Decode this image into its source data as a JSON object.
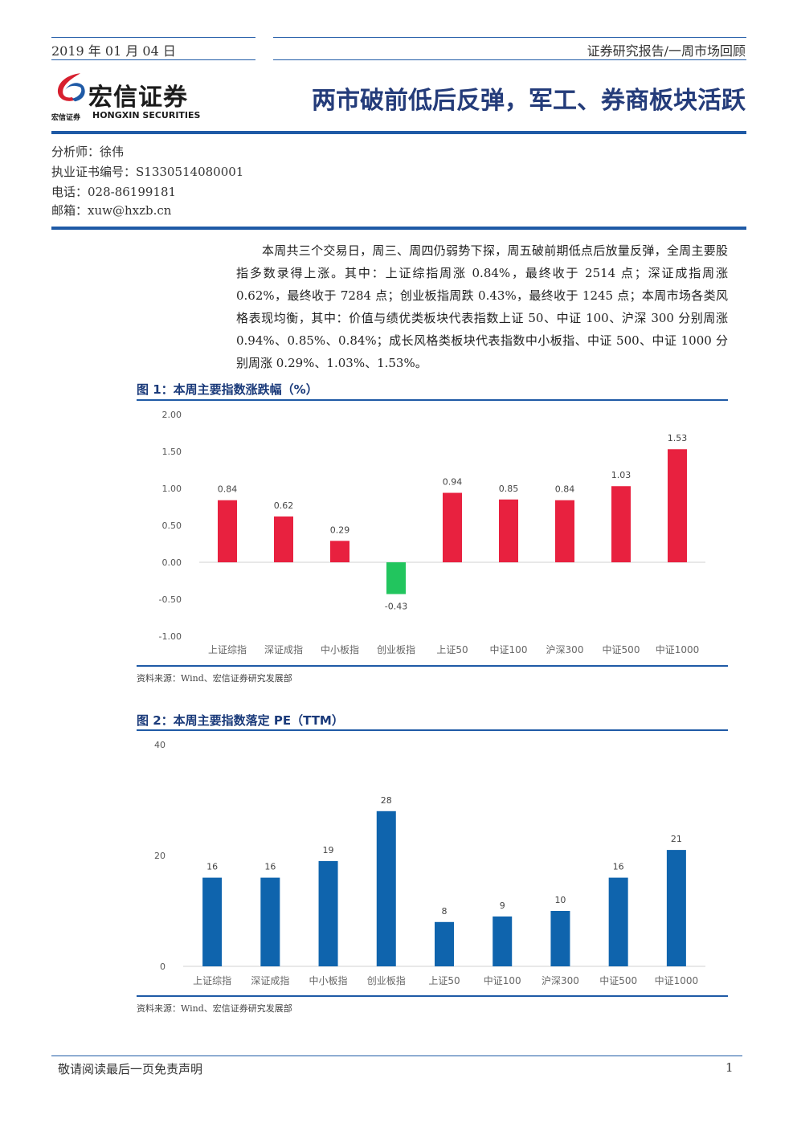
{
  "header": {
    "date": "2019 年 01 月 04 日",
    "report_type": "证券研究报告/一周市场回顾"
  },
  "logo": {
    "name_cn": "宏信证券",
    "name_en": "HONGXIN SECURITIES",
    "small_cn": "宏信证券",
    "colors": {
      "red": "#d7202f",
      "blue": "#1f5aa6"
    }
  },
  "title": "两市破前低后反弹，军工、券商板块活跃",
  "analyst": {
    "name": "分析师：徐伟",
    "cert": "执业证书编号：S1330514080001",
    "phone": "电话：028-86199181",
    "email": "邮箱：xuw@hxzb.cn"
  },
  "summary": "本周共三个交易日，周三、周四仍弱势下探，周五破前期低点后放量反弹，全周主要股指多数录得上涨。其中：上证综指周涨 0.84%，最终收于 2514 点；深证成指周涨 0.62%，最终收于 7284 点；创业板指周跌 0.43%，最终收于 1245 点；本周市场各类风格表现均衡，其中：价值与绩优类板块代表指数上证 50、中证 100、沪深 300 分别周涨 0.94%、0.85%、0.84%；成长风格类板块代表指数中小板指、中证 500、中证 1000 分别周涨 0.29%、1.03%、1.53%。",
  "figure1": {
    "title": "图 1：本周主要指数涨跌幅（%）",
    "source": "资料来源：Wind、宏信证券研究发展部"
  },
  "figure2": {
    "title": "图 2：本周主要指数落定 PE（TTM）",
    "source": "资料来源：Wind、宏信证券研究发展部"
  },
  "chart_data": [
    {
      "type": "bar",
      "categories": [
        "上证综指",
        "深证成指",
        "中小板指",
        "创业板指",
        "上证50",
        "中证100",
        "沪深300",
        "中证500",
        "中证1000"
      ],
      "values": [
        0.84,
        0.62,
        0.29,
        -0.43,
        0.94,
        0.85,
        0.84,
        1.03,
        1.53
      ],
      "data_labels": [
        "0.84",
        "0.62",
        "0.29",
        "-0.43",
        "0.94",
        "0.85",
        "0.84",
        "1.03",
        "1.53"
      ],
      "yticks": [
        "2.00",
        "1.50",
        "1.00",
        "0.50",
        "0.00",
        "-0.50",
        "-1.00"
      ],
      "ylim": [
        -1.0,
        2.0
      ],
      "colors": {
        "positive": "#e8213f",
        "negative": "#22c55e"
      },
      "grid": false
    },
    {
      "type": "bar",
      "categories": [
        "上证综指",
        "深证成指",
        "中小板指",
        "创业板指",
        "上证50",
        "中证100",
        "沪深300",
        "中证500",
        "中证1000"
      ],
      "values": [
        16,
        16,
        19,
        28,
        8,
        9,
        10,
        16,
        21
      ],
      "data_labels": [
        "16",
        "16",
        "19",
        "28",
        "8",
        "9",
        "10",
        "16",
        "21"
      ],
      "yticks": [
        "40",
        "20",
        "0"
      ],
      "ylim": [
        0,
        40
      ],
      "colors": {
        "bar": "#0f64ad"
      },
      "grid": false
    }
  ],
  "footer": {
    "disclaimer": "敬请阅读最后一页免责声明",
    "page": "1"
  }
}
